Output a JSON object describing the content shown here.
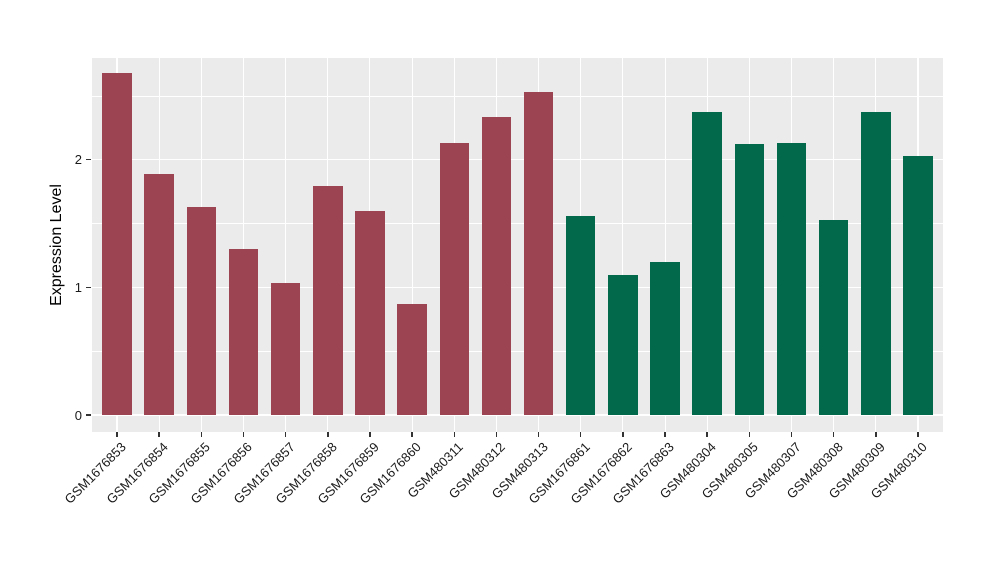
{
  "figure": {
    "background_color": "#ffffff",
    "panel_background_color": "#ebebeb",
    "gridline_color": "#ffffff",
    "tick_mark_color": "#333333",
    "text_color": "#1a1a1a"
  },
  "chart_data": {
    "type": "bar",
    "title": "",
    "xlabel": "",
    "ylabel": "Expression Level",
    "ylim": [
      0,
      2.79
    ],
    "ytick_values": [
      0,
      1,
      2
    ],
    "ytick_labels": [
      "0",
      "1",
      "2"
    ],
    "minor_gridline_values": [
      0.5,
      1.5,
      2.5
    ],
    "grid": "on",
    "legend_position": "none",
    "x_label_angle_deg": 45,
    "categories": [
      "GSM1676853",
      "GSM1676854",
      "GSM1676855",
      "GSM1676856",
      "GSM1676857",
      "GSM1676858",
      "GSM1676859",
      "GSM1676860",
      "GSM480311",
      "GSM480312",
      "GSM480313",
      "GSM1676861",
      "GSM1676862",
      "GSM1676863",
      "GSM480304",
      "GSM480305",
      "GSM480307",
      "GSM480308",
      "GSM480309",
      "GSM480310"
    ],
    "values": [
      2.68,
      1.89,
      1.63,
      1.3,
      1.03,
      1.79,
      1.6,
      0.87,
      2.13,
      2.33,
      2.53,
      1.56,
      1.1,
      1.2,
      2.37,
      2.12,
      2.13,
      1.53,
      2.37,
      2.03
    ],
    "bar_groups": [
      "group1",
      "group1",
      "group1",
      "group1",
      "group1",
      "group1",
      "group1",
      "group1",
      "group1",
      "group1",
      "group1",
      "group2",
      "group2",
      "group2",
      "group2",
      "group2",
      "group2",
      "group2",
      "group2",
      "group2"
    ],
    "group_colors": {
      "group1": "#9C4451",
      "group2": "#03694B"
    }
  }
}
